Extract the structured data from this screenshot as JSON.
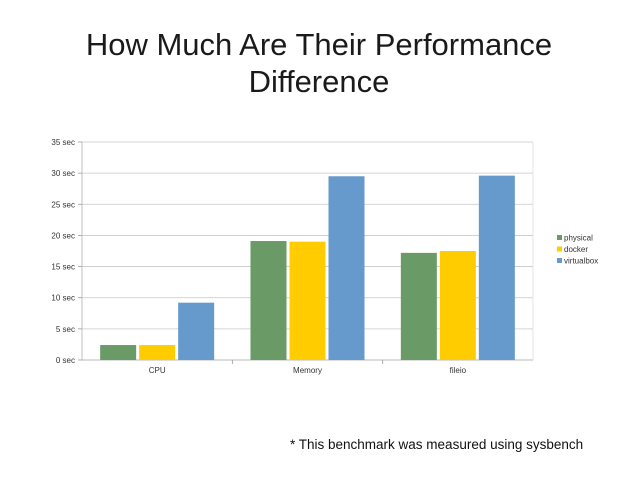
{
  "slide": {
    "title": "How Much Are Their Performance Difference",
    "footnote": "* This benchmark was measured using sysbench"
  },
  "chart_data": {
    "type": "bar",
    "categories": [
      "CPU",
      "Memory",
      "fileio"
    ],
    "series": [
      {
        "name": "physical",
        "values": [
          2.4,
          19.1,
          17.2
        ],
        "color": "#6a9a65"
      },
      {
        "name": "docker",
        "values": [
          2.4,
          19.0,
          17.5
        ],
        "color": "#ffcc00"
      },
      {
        "name": "virtualbox",
        "values": [
          9.2,
          29.5,
          29.6
        ],
        "color": "#6699cc"
      }
    ],
    "yticks": [
      "0 sec",
      "5 sec",
      "10 sec",
      "15 sec",
      "20 sec",
      "25 sec",
      "30 sec",
      "35 sec"
    ],
    "ylim": [
      0,
      35
    ],
    "grid": true,
    "legend_position": "right",
    "title": "",
    "xlabel": "",
    "ylabel": ""
  }
}
